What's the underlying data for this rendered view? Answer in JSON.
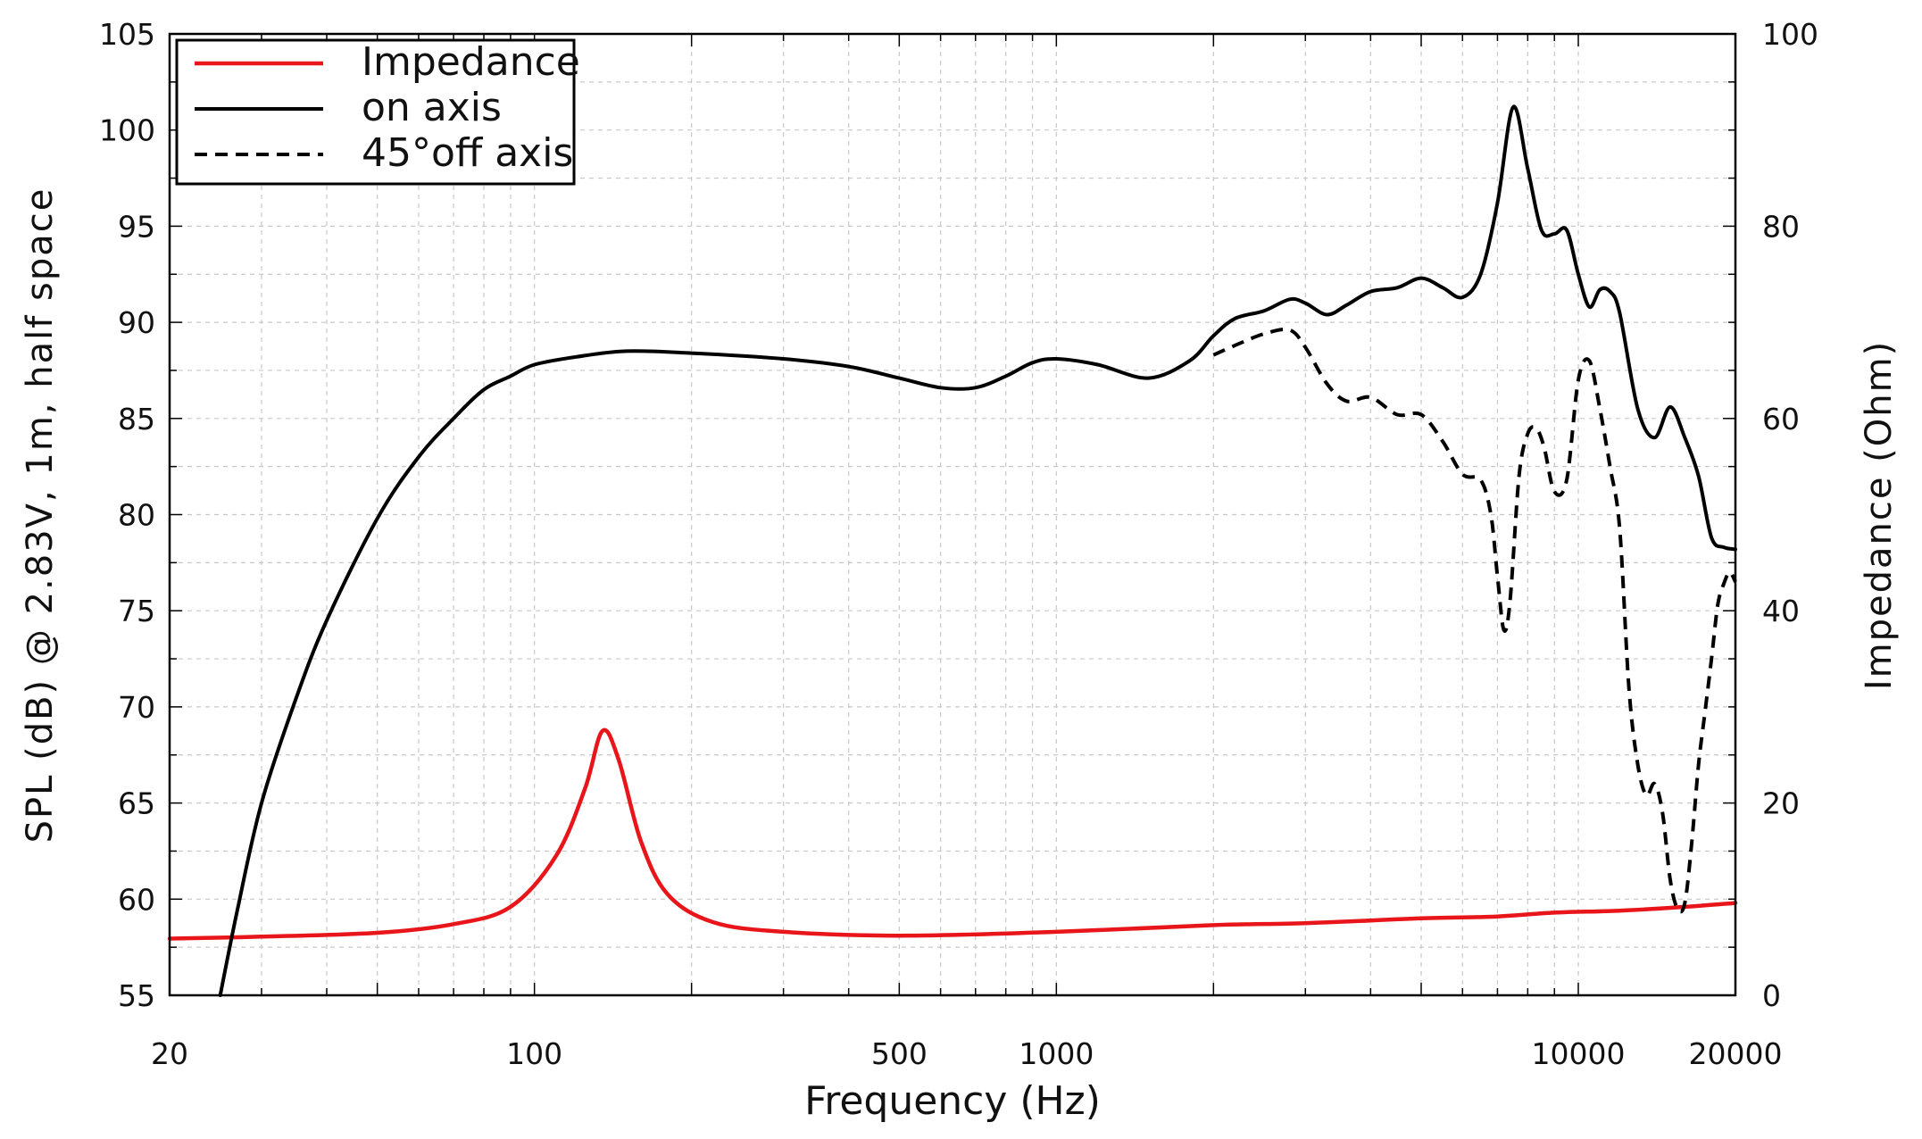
{
  "chart_data": {
    "type": "line",
    "xlabel": "Frequency (Hz)",
    "ylabel": "SPL (dB) @ 2.83V, 1m, half space",
    "y2label": "Impedance (Ohm)",
    "x_scale": "log",
    "xlim": [
      20,
      20000
    ],
    "ylim": [
      55,
      105
    ],
    "y2lim": [
      0,
      100
    ],
    "grid": true,
    "legend_position": "top-left",
    "x_tick_labels": [
      "20",
      "100",
      "500",
      "1000",
      "10000",
      "20000"
    ],
    "x_tick_values": [
      20,
      100,
      500,
      1000,
      10000,
      20000
    ],
    "y_tick_values": [
      55,
      60,
      65,
      70,
      75,
      80,
      85,
      90,
      95,
      100,
      105
    ],
    "y2_tick_values": [
      0,
      20,
      40,
      60,
      80,
      100
    ],
    "series": [
      {
        "name": "Impedance",
        "axis": "right",
        "color": "#e8161a",
        "style": "solid",
        "x": [
          20,
          30,
          50,
          70,
          90,
          110,
          125,
          135,
          145,
          160,
          180,
          220,
          300,
          500,
          1000,
          2000,
          3000,
          5000,
          7000,
          9000,
          12000,
          16000,
          20000
        ],
        "y": [
          5.9,
          6.1,
          6.5,
          7.4,
          9.2,
          14.5,
          21.5,
          27.5,
          24.5,
          16.0,
          10.5,
          7.6,
          6.6,
          6.2,
          6.6,
          7.3,
          7.5,
          8.0,
          8.2,
          8.6,
          8.8,
          9.2,
          9.6
        ]
      },
      {
        "name": "on axis",
        "axis": "left",
        "color": "#000000",
        "style": "solid",
        "x": [
          25,
          27,
          30,
          35,
          40,
          50,
          60,
          70,
          80,
          90,
          100,
          120,
          150,
          200,
          300,
          400,
          500,
          600,
          700,
          800,
          900,
          1000,
          1200,
          1500,
          1800,
          2000,
          2200,
          2500,
          2800,
          3000,
          3300,
          3600,
          4000,
          4500,
          5000,
          5500,
          6000,
          6500,
          7000,
          7500,
          8000,
          8500,
          9000,
          9500,
          10000,
          10500,
          11000,
          11500,
          12000,
          13000,
          14000,
          15000,
          16000,
          17000,
          18000,
          19000,
          20000
        ],
        "y": [
          55.0,
          59.5,
          65.0,
          70.5,
          74.5,
          79.8,
          83.0,
          85.0,
          86.5,
          87.2,
          87.8,
          88.2,
          88.5,
          88.4,
          88.1,
          87.7,
          87.1,
          86.6,
          86.6,
          87.2,
          87.9,
          88.1,
          87.8,
          87.1,
          88.0,
          89.3,
          90.2,
          90.6,
          91.2,
          91.0,
          90.4,
          90.9,
          91.6,
          91.8,
          92.3,
          91.8,
          91.3,
          92.5,
          96.2,
          101.2,
          98.0,
          94.8,
          94.6,
          94.8,
          92.5,
          90.8,
          91.7,
          91.6,
          90.5,
          85.5,
          84.0,
          85.6,
          84.0,
          82.0,
          78.8,
          78.3,
          78.2
        ]
      },
      {
        "name": "45°off axis",
        "axis": "left",
        "color": "#000000",
        "style": "dashed",
        "x": [
          2000,
          2200,
          2500,
          2800,
          3000,
          3300,
          3600,
          4000,
          4500,
          5000,
          5500,
          6000,
          6500,
          6800,
          7000,
          7200,
          7400,
          7700,
          8000,
          8300,
          8600,
          9000,
          9500,
          10000,
          10500,
          11000,
          11500,
          12000,
          12500,
          13000,
          13500,
          14000,
          14500,
          15000,
          15500,
          16000,
          16500,
          17000,
          17500,
          18000,
          18500,
          19000,
          19500,
          20000
        ],
        "y": [
          88.3,
          88.8,
          89.4,
          89.6,
          88.7,
          86.8,
          85.9,
          86.1,
          85.2,
          85.2,
          83.8,
          82.1,
          81.8,
          80.0,
          76.8,
          74.0,
          75.5,
          82.0,
          84.2,
          84.5,
          83.5,
          81.2,
          81.8,
          87.0,
          88.0,
          85.5,
          82.5,
          79.3,
          71.0,
          67.0,
          65.4,
          66.0,
          64.5,
          61.0,
          59.5,
          59.8,
          63.0,
          67.0,
          69.8,
          72.5,
          75.3,
          76.4,
          77.0,
          76.5
        ]
      }
    ]
  }
}
